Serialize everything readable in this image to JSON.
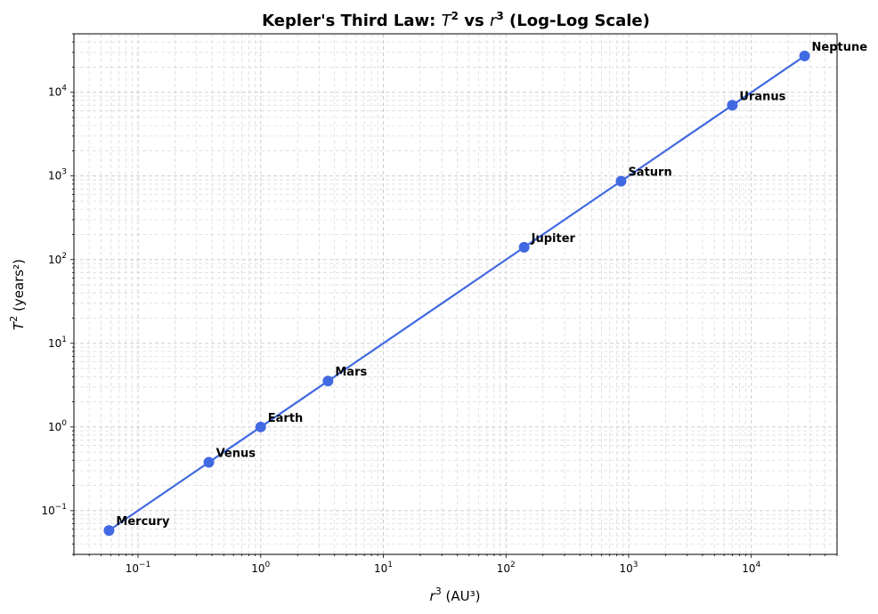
{
  "chart_data": {
    "type": "line",
    "title_parts": [
      "Kepler's Third Law: ",
      "T",
      "2",
      " vs ",
      "r",
      "3",
      " (Log-Log Scale)"
    ],
    "xlabel_parts": [
      "r",
      "3",
      " (AU³)"
    ],
    "ylabel_parts": [
      "T",
      "2",
      " (years²)"
    ],
    "x_scale": "log",
    "y_scale": "log",
    "xlim": [
      0.03,
      50000
    ],
    "ylim": [
      0.03,
      50000
    ],
    "grid": true,
    "series_color": "#4169e1",
    "points": [
      {
        "label": "Mercury",
        "x": 0.058,
        "y": 0.058
      },
      {
        "label": "Venus",
        "x": 0.378,
        "y": 0.378
      },
      {
        "label": "Earth",
        "x": 1.0,
        "y": 1.0
      },
      {
        "label": "Mars",
        "x": 3.54,
        "y": 3.54
      },
      {
        "label": "Jupiter",
        "x": 140.6,
        "y": 140.6
      },
      {
        "label": "Saturn",
        "x": 867,
        "y": 867
      },
      {
        "label": "Uranus",
        "x": 7003,
        "y": 7003
      },
      {
        "label": "Neptune",
        "x": 27190,
        "y": 27190
      }
    ],
    "x_ticks": [
      {
        "value": 0.1,
        "base": "10",
        "exp": "−1"
      },
      {
        "value": 1,
        "base": "10",
        "exp": "0"
      },
      {
        "value": 10,
        "base": "10",
        "exp": "1"
      },
      {
        "value": 100,
        "base": "10",
        "exp": "2"
      },
      {
        "value": 1000,
        "base": "10",
        "exp": "3"
      },
      {
        "value": 10000,
        "base": "10",
        "exp": "4"
      }
    ],
    "y_ticks": [
      {
        "value": 0.1,
        "base": "10",
        "exp": "−1"
      },
      {
        "value": 1,
        "base": "10",
        "exp": "0"
      },
      {
        "value": 10,
        "base": "10",
        "exp": "1"
      },
      {
        "value": 100,
        "base": "10",
        "exp": "2"
      },
      {
        "value": 1000,
        "base": "10",
        "exp": "3"
      },
      {
        "value": 10000,
        "base": "10",
        "exp": "4"
      }
    ]
  }
}
